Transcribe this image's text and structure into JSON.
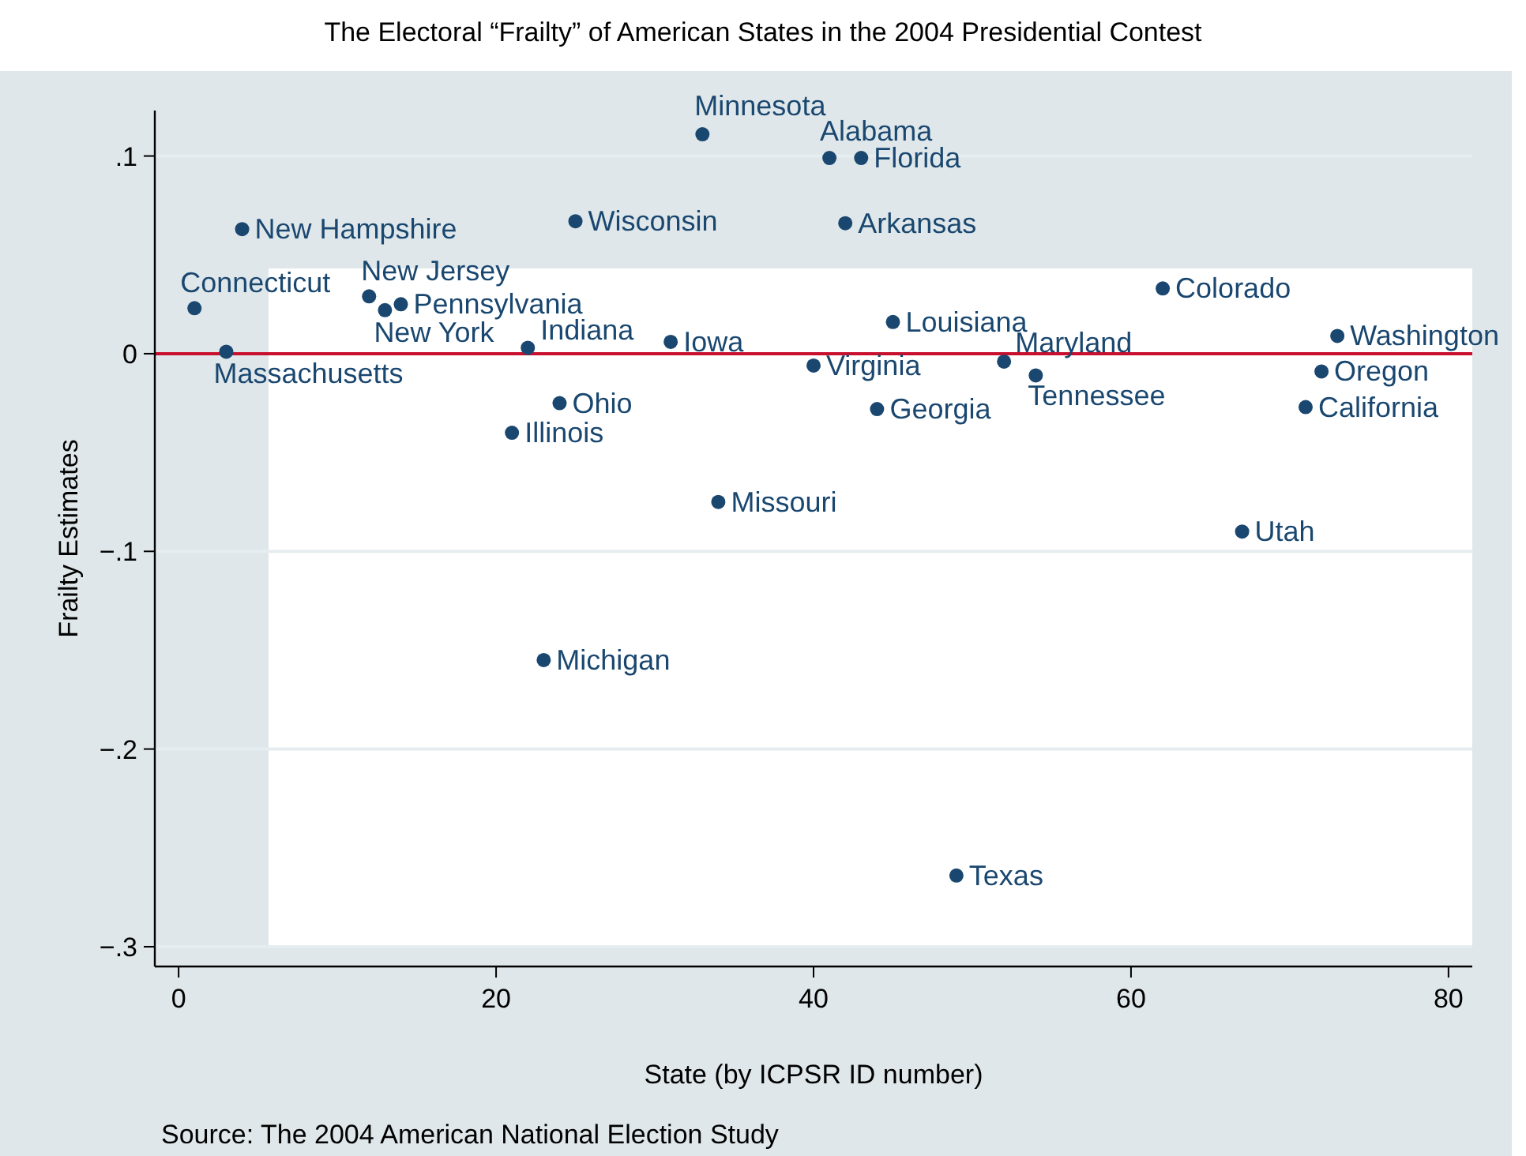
{
  "chart_data": {
    "type": "scatter",
    "title": "The Electoral “Frailty” of American States in the 2004 Presidential Contest",
    "xlabel": "State (by ICPSR ID number)",
    "ylabel": "Frailty Estimates",
    "annotations": [
      "Source: The 2004 American National Election Study"
    ],
    "x": [
      1,
      3,
      4,
      12,
      13,
      14,
      21,
      22,
      23,
      24,
      25,
      31,
      33,
      34,
      40,
      41,
      42,
      43,
      44,
      45,
      49,
      52,
      54,
      62,
      67,
      71,
      72,
      73
    ],
    "series": [
      {
        "color": "#1a476f",
        "values": [
          0.023,
          0.001,
          0.063,
          0.029,
          0.022,
          0.025,
          -0.04,
          0.003,
          -0.155,
          -0.025,
          0.067,
          0.006,
          0.111,
          -0.075,
          -0.006,
          0.099,
          0.066,
          0.099,
          -0.028,
          0.016,
          -0.264,
          -0.004,
          -0.011,
          0.033,
          -0.09,
          -0.027,
          -0.009,
          0.009
        ],
        "value_labels": [
          "Connecticut",
          "Massachusetts",
          "New Hampshire",
          "New Jersey",
          "New York",
          "Pennsylvania",
          "Illinois",
          "Indiana",
          "Michigan",
          "Ohio",
          "Wisconsin",
          "Iowa",
          "Minnesota",
          "Missouri",
          "Virginia",
          "Alabama",
          "Arkansas",
          "Florida",
          "Georgia",
          "Louisiana",
          "Texas",
          "Maryland",
          "Tennessee",
          "Colorado",
          "Utah",
          "California",
          "Oregon",
          "Washington"
        ]
      }
    ],
    "xlim": [
      -1.5,
      81.5
    ],
    "ylim": [
      -0.31,
      0.123
    ],
    "xticks": [
      0,
      20,
      40,
      60,
      80
    ],
    "yticks": [
      {
        "value": -0.3,
        "label": "−.3"
      },
      {
        "value": -0.2,
        "label": "−.2"
      },
      {
        "value": -0.1,
        "label": "−.1"
      },
      0,
      {
        "value": 0.1,
        "label": ".1"
      }
    ],
    "ref_lines": [
      {
        "axis": "y",
        "value": 0,
        "color": "#c8102e"
      }
    ],
    "grid": "y",
    "marker": "circle"
  }
}
